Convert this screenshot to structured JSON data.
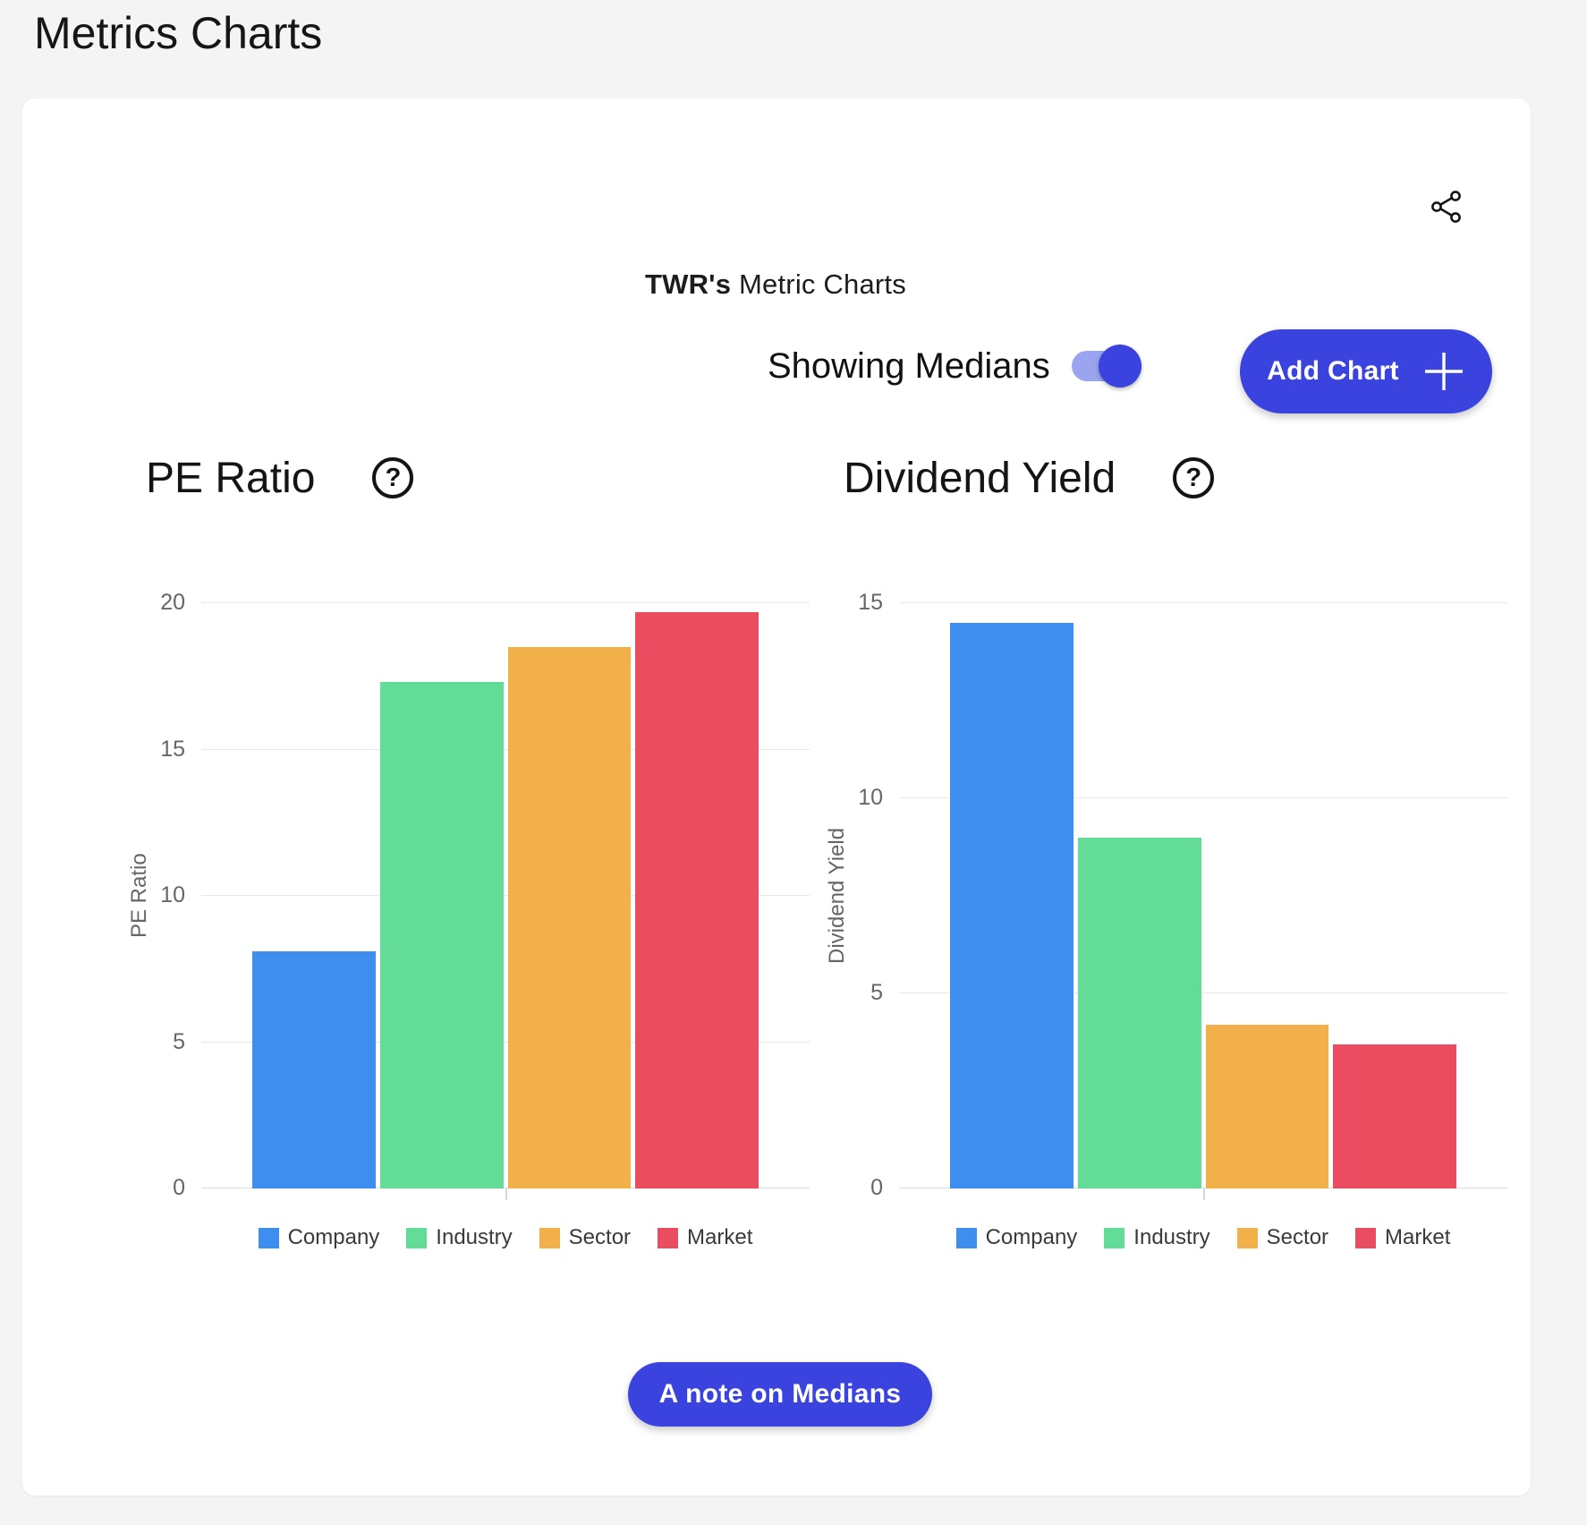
{
  "page": {
    "title": "Metrics Charts"
  },
  "panel": {
    "header": {
      "ticker": "TWR's",
      "title_rest": "Metric Charts"
    },
    "toggle": {
      "label": "Showing Medians",
      "state": "on"
    },
    "add_chart_label": "Add Chart",
    "note_button_label": "A note on Medians"
  },
  "icons": {
    "share": "share-icon",
    "help_glyph": "?",
    "plus": "plus-icon"
  },
  "colors": {
    "accent_blue": "#3a43de",
    "toggle_track": "#9aa4ef",
    "company": "#3e8ef0",
    "industry": "#62dc97",
    "sector": "#f2b04b",
    "market": "#e94d5f"
  },
  "chart_data": [
    {
      "type": "bar",
      "title": "PE Ratio",
      "ylabel": "PE Ratio",
      "xlabel": "",
      "categories": [
        "Company",
        "Industry",
        "Sector",
        "Market"
      ],
      "values": [
        8.1,
        17.3,
        18.5,
        19.7
      ],
      "bar_colors": [
        "#3e8ef0",
        "#62dc97",
        "#f2b04b",
        "#e94d5f"
      ],
      "ylim": [
        0,
        20
      ],
      "yticks": [
        0,
        5,
        10,
        15,
        20
      ],
      "grid": true,
      "legend_position": "bottom",
      "legend": [
        "Company",
        "Industry",
        "Sector",
        "Market"
      ]
    },
    {
      "type": "bar",
      "title": "Dividend Yield",
      "ylabel": "Dividend Yield",
      "xlabel": "",
      "categories": [
        "Company",
        "Industry",
        "Sector",
        "Market"
      ],
      "values": [
        14.5,
        9.0,
        4.2,
        3.7
      ],
      "bar_colors": [
        "#3e8ef0",
        "#62dc97",
        "#f2b04b",
        "#e94d5f"
      ],
      "ylim": [
        0,
        15
      ],
      "yticks": [
        0,
        5,
        10,
        15
      ],
      "grid": true,
      "legend_position": "bottom",
      "legend": [
        "Company",
        "Industry",
        "Sector",
        "Market"
      ]
    }
  ]
}
